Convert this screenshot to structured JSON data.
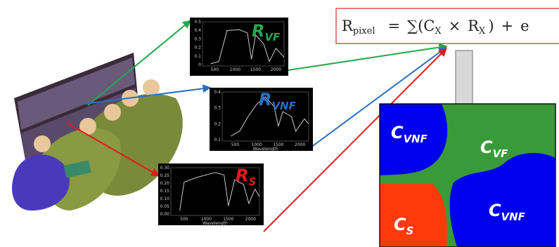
{
  "formula": {
    "parts": [
      {
        "text": "R"
      },
      {
        "text": "pixel",
        "sub": true
      },
      {
        "text": "="
      },
      {
        "text": "∑(C"
      },
      {
        "text": "X",
        "sub": true
      },
      {
        "text": "×"
      },
      {
        "text": "R"
      },
      {
        "text": "X",
        "sub": true
      },
      {
        "text": ")"
      },
      {
        "text": "+"
      },
      {
        "text": "e"
      }
    ]
  },
  "spectra": [
    {
      "label": {
        "main": "R",
        "sub": "VF"
      },
      "color": "#22a84a",
      "yticks": [
        "0.5",
        "0.4",
        "0.3",
        "0.2",
        "0.1",
        "0"
      ],
      "xticks": [
        "500",
        "1000",
        "1500",
        "2000"
      ]
    },
    {
      "label": {
        "main": "R",
        "sub": "VNF"
      },
      "color": "#2a6fbf",
      "yticks": [
        "0.4",
        "0.3",
        "0.2",
        "0.1"
      ],
      "xticks": [
        "500",
        "1000",
        "1500",
        "2000"
      ],
      "xlabel": "Wavelength"
    },
    {
      "label": {
        "main": "R",
        "sub": "S"
      },
      "color": "#e31b1b",
      "yticks": [
        "0.30",
        "0.25",
        "0.20",
        "0.15",
        "0.10",
        "0.05",
        "0.00"
      ],
      "xticks": [
        "500",
        "1000",
        "1500",
        "2000"
      ],
      "xlabel": "Wavelength"
    }
  ],
  "map": {
    "regions": [
      {
        "main": "C",
        "sub": "VNF"
      },
      {
        "main": "C",
        "sub": "VF"
      },
      {
        "main": "C",
        "sub": "S"
      },
      {
        "main": "C",
        "sub": "VNF"
      }
    ]
  }
}
